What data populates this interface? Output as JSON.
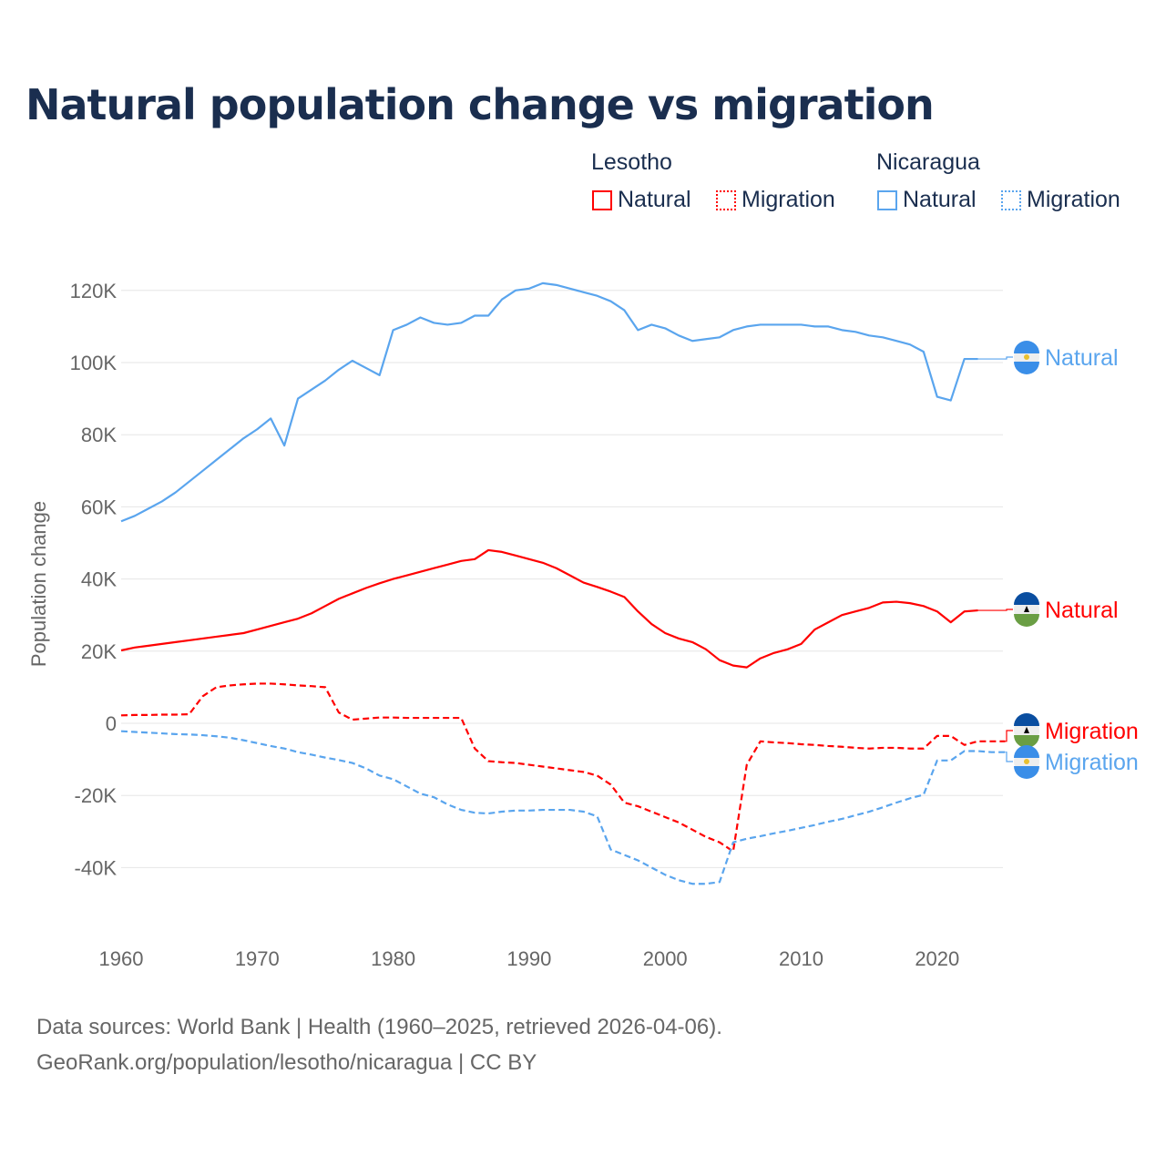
{
  "title": "Natural population change vs migration",
  "legend": {
    "groups": [
      {
        "name": "Lesotho",
        "items": [
          "Natural",
          "Migration"
        ]
      },
      {
        "name": "Nicaragua",
        "items": [
          "Natural",
          "Migration"
        ]
      }
    ]
  },
  "footer": {
    "line1": "Data sources: World Bank | Health (1960–2025, retrieved 2026-04-06).",
    "line2": "GeoRank.org/population/lesotho/nicaragua | CC BY"
  },
  "chart_data": {
    "type": "line",
    "title": "Natural population change vs migration",
    "xlabel": "",
    "ylabel": "Population change",
    "xlim": [
      1960,
      2025
    ],
    "ylim": [
      -50000,
      125000
    ],
    "xticks": [
      1960,
      1970,
      1980,
      1990,
      2000,
      2010,
      2020
    ],
    "xtick_labels": [
      "1960",
      "1970",
      "1980",
      "1990",
      "2000",
      "2010",
      "2020"
    ],
    "yticks": [
      -40000,
      -20000,
      0,
      20000,
      40000,
      60000,
      80000,
      100000,
      120000
    ],
    "ytick_labels": [
      "-40K",
      "-20K",
      "0",
      "20K",
      "40K",
      "60K",
      "80K",
      "100K",
      "120K"
    ],
    "grid": true,
    "colors": {
      "Lesotho": "#ff0000",
      "Nicaragua": "#5aa5ee"
    },
    "series": [
      {
        "name": "Nicaragua Natural",
        "country": "Nicaragua",
        "kind": "Natural",
        "start": 1960,
        "dashed": false,
        "end_label": "Natural",
        "values": [
          56,
          57.5,
          59.5,
          61.5,
          64,
          67,
          70,
          73,
          76,
          79,
          81.5,
          84.5,
          77,
          90,
          92.5,
          95,
          98,
          100.5,
          98.5,
          96.5,
          109,
          110.5,
          112.5,
          111,
          110.5,
          111,
          113,
          113,
          117.5,
          120,
          120.5,
          122,
          121.5,
          120.5,
          119.5,
          118.5,
          117,
          114.5,
          109,
          110.5,
          109.5,
          107.5,
          106,
          106.5,
          107,
          109,
          110,
          110.5,
          110.5,
          110.5,
          110.5,
          110,
          110,
          109,
          108.5,
          107.5,
          107,
          106,
          105,
          103,
          90.5,
          89.5,
          101,
          101
        ]
      },
      {
        "name": "Lesotho Natural",
        "country": "Lesotho",
        "kind": "Natural",
        "start": 1960,
        "dashed": false,
        "end_label": "Natural",
        "values": [
          20.2,
          21,
          21.5,
          22,
          22.5,
          23,
          23.5,
          24,
          24.5,
          25,
          26,
          27,
          28,
          29,
          30.5,
          32.5,
          34.5,
          36,
          37.5,
          38.8,
          40,
          41,
          42,
          43,
          44,
          45,
          45.5,
          48,
          47.5,
          46.5,
          45.5,
          44.5,
          43,
          41,
          39,
          37.8,
          36.5,
          35,
          31,
          27.5,
          25,
          23.5,
          22.5,
          20.5,
          17.5,
          16,
          15.5,
          18,
          19.5,
          20.5,
          22,
          26,
          28,
          30,
          31,
          32,
          33.5,
          33.7,
          33.3,
          32.5,
          31,
          28,
          31,
          31.3
        ]
      },
      {
        "name": "Lesotho Migration",
        "country": "Lesotho",
        "kind": "Migration",
        "start": 1960,
        "dashed": true,
        "end_label": "Migration",
        "values": [
          2.2,
          2.3,
          2.3,
          2.4,
          2.4,
          2.5,
          7.5,
          10,
          10.5,
          10.8,
          11,
          11,
          10.8,
          10.5,
          10.3,
          10,
          3,
          1,
          1.3,
          1.6,
          1.6,
          1.5,
          1.5,
          1.5,
          1.5,
          1.5,
          -7,
          -10.5,
          -10.8,
          -11,
          -11.5,
          -12,
          -12.5,
          -13,
          -13.5,
          -14.5,
          -17,
          -22,
          -23,
          -24.5,
          -26,
          -27.5,
          -29.5,
          -31.5,
          -33,
          -35.5,
          -11.5,
          -5,
          -5.3,
          -5.5,
          -5.8,
          -6,
          -6.3,
          -6.5,
          -6.8,
          -7,
          -6.8,
          -6.8,
          -7,
          -7,
          -3.5,
          -3.5,
          -6,
          -5,
          -5,
          -5
        ]
      },
      {
        "name": "Nicaragua Migration",
        "country": "Nicaragua",
        "kind": "Migration",
        "start": 1960,
        "dashed": true,
        "end_label": "Migration",
        "values": [
          -2.2,
          -2.4,
          -2.6,
          -2.8,
          -3,
          -3.1,
          -3.3,
          -3.6,
          -4,
          -4.7,
          -5.5,
          -6.3,
          -7,
          -8,
          -8.7,
          -9.5,
          -10.2,
          -11,
          -12.5,
          -14.5,
          -15.5,
          -17.5,
          -19.5,
          -20.5,
          -22.5,
          -24,
          -24.8,
          -25,
          -24.5,
          -24.2,
          -24.2,
          -24,
          -24,
          -24,
          -24.5,
          -25.8,
          -35,
          -36.5,
          -38,
          -40,
          -42,
          -43.5,
          -44.5,
          -44.5,
          -44,
          -33,
          -32,
          -31.3,
          -30.5,
          -29.8,
          -29,
          -28.2,
          -27.3,
          -26.5,
          -25.5,
          -24.5,
          -23.3,
          -22,
          -20.8,
          -19.8,
          -10.3,
          -10.3,
          -7.7,
          -7.7,
          -8,
          -8
        ]
      }
    ],
    "value_unit": "thousands"
  }
}
